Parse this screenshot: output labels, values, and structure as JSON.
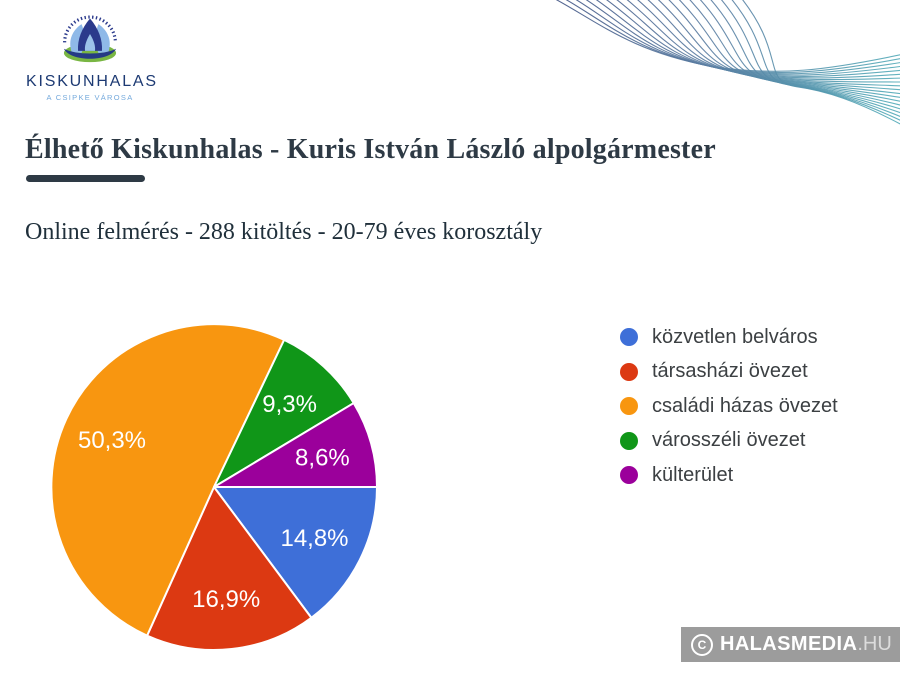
{
  "logo": {
    "name": "KISKUNHALAS",
    "tagline": "A CSIPKE VÁROSA"
  },
  "header": {
    "title": "Élhető Kiskunhalas - Kuris István László alpolgármester",
    "subtitle": "Online felmérés - 288 kitöltés - 20-79 éves korosztály"
  },
  "chart_data": {
    "type": "pie",
    "title": "",
    "labels": [
      "közvetlen belváros",
      "társasházi övezet",
      "családi házas övezet",
      "városszéli övezet",
      "külterület"
    ],
    "values": [
      14.8,
      16.9,
      50.3,
      9.3,
      8.6
    ],
    "value_labels": [
      "14,8%",
      "16,9%",
      "50,3%",
      "9,3%",
      "8,6%"
    ],
    "colors": [
      "#3e6fd8",
      "#dc3912",
      "#f89610",
      "#109618",
      "#9b009b"
    ],
    "start_angle_deg": 90,
    "direction": "clockwise",
    "legend_position": "right",
    "slice_border_color": "#ffffff",
    "label_color": "#ffffff"
  },
  "watermark": {
    "copyright_letter": "C",
    "name": "HALASMEDIA",
    "tld": ".HU"
  },
  "decor_colors": {
    "wave_start": "#3d4e80",
    "wave_mid": "#5b7fa3",
    "wave_end": "#51a9b7"
  }
}
